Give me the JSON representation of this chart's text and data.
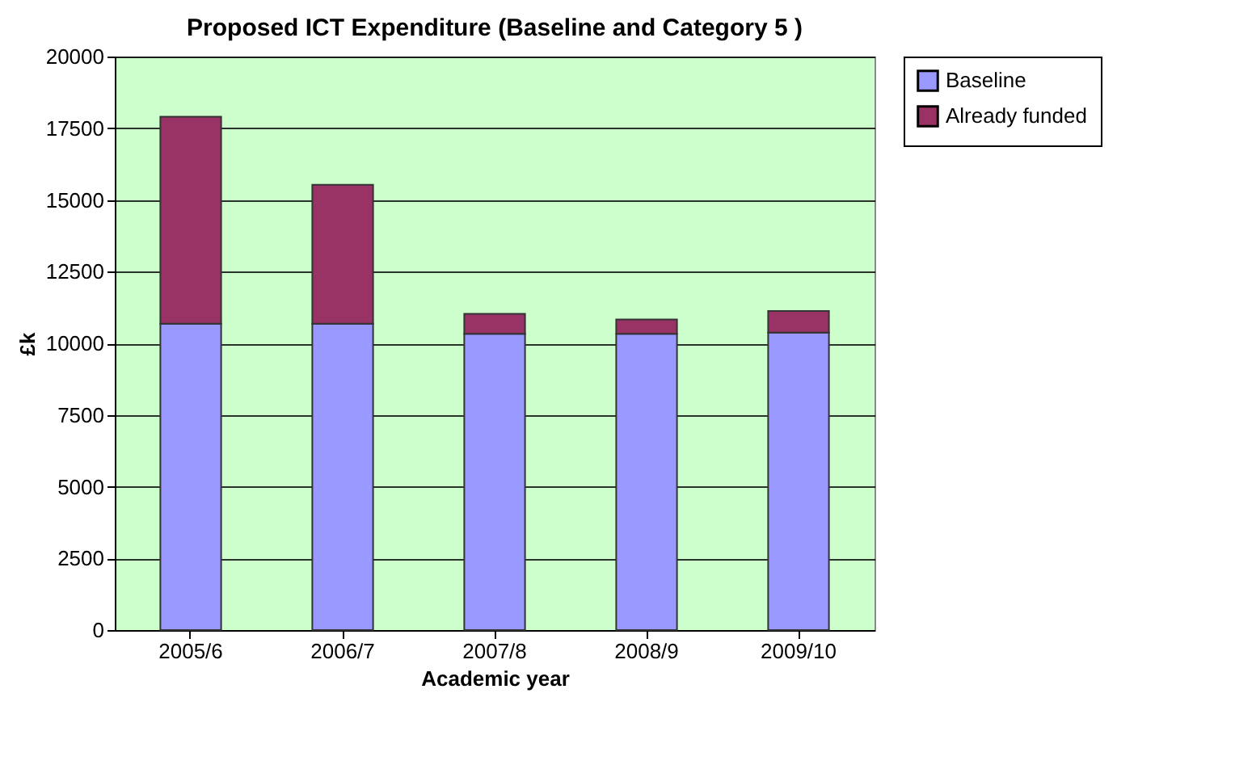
{
  "chart_data": {
    "type": "bar",
    "title": "Proposed ICT Expenditure (Baseline and Category 5 )",
    "xlabel": "Academic year",
    "ylabel": "£k",
    "categories": [
      "2005/6",
      "2006/7",
      "2007/8",
      "2008/9",
      "2009/10"
    ],
    "series": [
      {
        "name": "Baseline",
        "color": "#9999ff",
        "values": [
          10680,
          10680,
          10330,
          10330,
          10370
        ]
      },
      {
        "name": "Already funded",
        "color": "#993366",
        "values": [
          7220,
          4850,
          700,
          500,
          760
        ]
      }
    ],
    "stacked": true,
    "ylim": [
      0,
      20000
    ],
    "yticks": [
      0,
      2500,
      5000,
      7500,
      10000,
      12500,
      15000,
      17500,
      20000
    ],
    "grid": "y",
    "legend": "right"
  }
}
